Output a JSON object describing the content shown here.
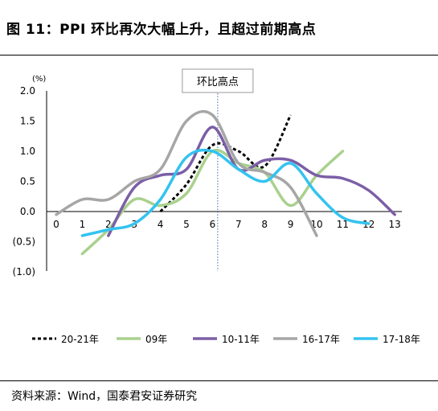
{
  "title": "图 11：PPI 环比再次大幅上升，且超过前期高点",
  "source": "资料来源：Wind，国泰君安证券研究",
  "chart_data": {
    "type": "line",
    "unit_label": "(%)",
    "annotation": "环比高点",
    "annotation_x": 6.2,
    "x_ticks": [
      "0",
      "1",
      "2",
      "3",
      "4",
      "5",
      "6",
      "7",
      "8",
      "9",
      "10",
      "11",
      "12",
      "13"
    ],
    "y_ticks": [
      "2.0",
      "1.5",
      "1.0",
      "0.5",
      "0.0",
      "(0.5)",
      "(1.0)"
    ],
    "y_tick_values": [
      2.0,
      1.5,
      1.0,
      0.5,
      0.0,
      -0.5,
      -1.0
    ],
    "ylim": [
      -1.0,
      2.0
    ],
    "xlim": [
      0,
      13
    ],
    "grid": false,
    "legend_position": "bottom",
    "series": [
      {
        "name": "20-21年",
        "color": "#000000",
        "dash": "4,3",
        "points": [
          [
            4,
            0.0
          ],
          [
            5,
            0.45
          ],
          [
            6,
            1.1
          ],
          [
            7,
            1.0
          ],
          [
            8,
            0.75
          ],
          [
            9,
            1.6
          ]
        ]
      },
      {
        "name": "09年",
        "color": "#a9d18e",
        "dash": "",
        "points": [
          [
            1,
            -0.7
          ],
          [
            2,
            -0.3
          ],
          [
            3,
            0.2
          ],
          [
            4,
            0.1
          ],
          [
            5,
            0.3
          ],
          [
            6,
            1.0
          ],
          [
            7,
            0.8
          ],
          [
            8,
            0.65
          ],
          [
            9,
            0.1
          ],
          [
            10,
            0.6
          ],
          [
            11,
            1.0
          ]
        ]
      },
      {
        "name": "10-11年",
        "color": "#7b5ea7",
        "dash": "",
        "points": [
          [
            2,
            -0.4
          ],
          [
            3,
            0.4
          ],
          [
            4,
            0.6
          ],
          [
            5,
            0.7
          ],
          [
            6,
            1.4
          ],
          [
            7,
            0.7
          ],
          [
            8,
            0.85
          ],
          [
            9,
            0.85
          ],
          [
            10,
            0.6
          ],
          [
            11,
            0.55
          ],
          [
            12,
            0.35
          ],
          [
            13,
            -0.05
          ]
        ]
      },
      {
        "name": "16-17年",
        "color": "#a6a6a6",
        "dash": "",
        "points": [
          [
            0,
            -0.05
          ],
          [
            1,
            0.2
          ],
          [
            2,
            0.2
          ],
          [
            3,
            0.5
          ],
          [
            4,
            0.7
          ],
          [
            5,
            1.5
          ],
          [
            6,
            1.6
          ],
          [
            7,
            0.8
          ],
          [
            8,
            0.65
          ],
          [
            9,
            0.4
          ],
          [
            10,
            -0.4
          ]
        ]
      },
      {
        "name": "17-18年",
        "color": "#33c3f0",
        "dash": "",
        "points": [
          [
            1,
            -0.4
          ],
          [
            2,
            -0.3
          ],
          [
            3,
            -0.2
          ],
          [
            4,
            0.2
          ],
          [
            5,
            0.9
          ],
          [
            6,
            1.0
          ],
          [
            7,
            0.7
          ],
          [
            8,
            0.5
          ],
          [
            9,
            0.8
          ],
          [
            10,
            0.3
          ],
          [
            11,
            -0.1
          ],
          [
            12,
            -0.2
          ]
        ]
      }
    ]
  }
}
